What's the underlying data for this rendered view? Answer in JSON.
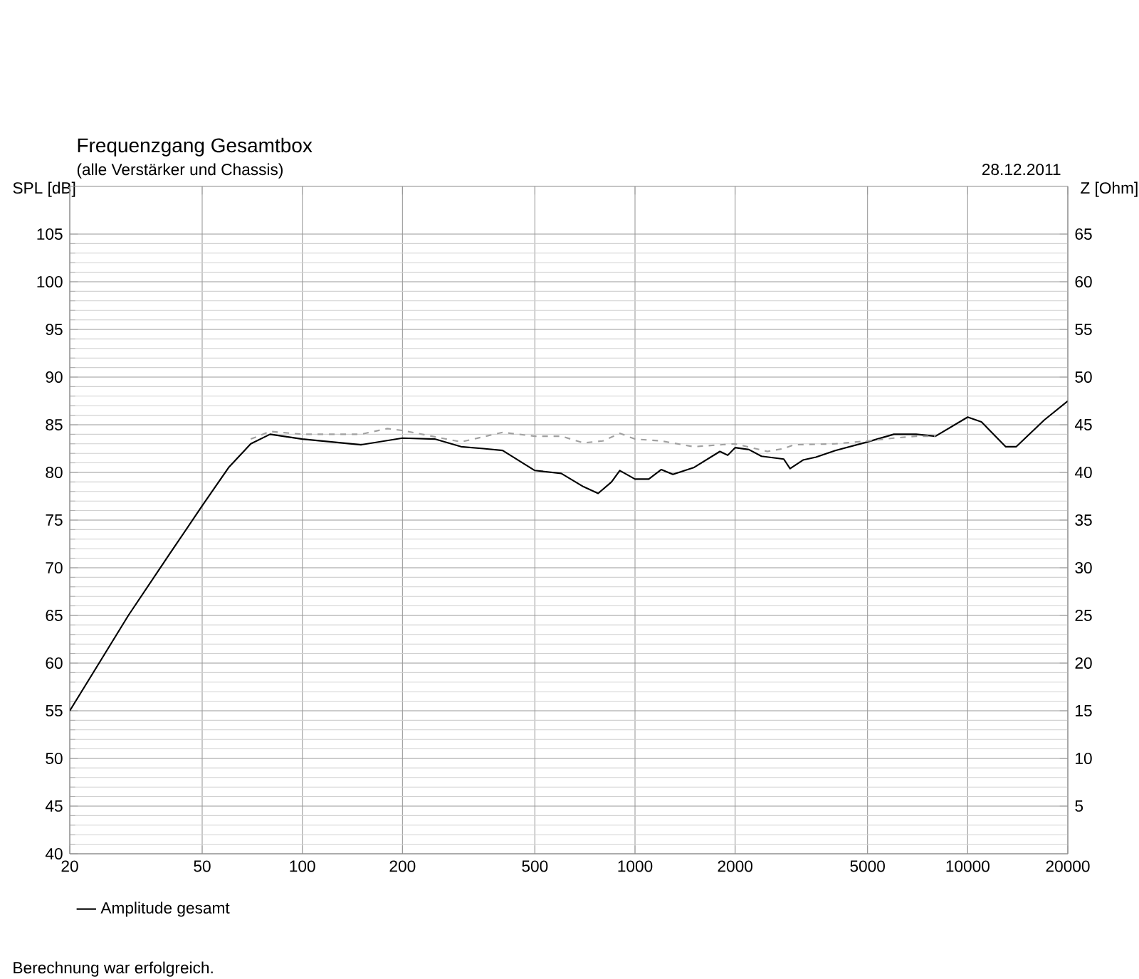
{
  "chart_data": {
    "type": "line",
    "title": "Frequenzgang Gesamtbox",
    "subtitle": "(alle Verstärker und Chassis)",
    "ylabel": "SPL [dB]",
    "y2label": "Z [Ohm]",
    "annotations": [
      "28.12.2011",
      "Berechnung war erfolgreich."
    ],
    "log": "x",
    "grid": true,
    "legend": "bottom left",
    "marker": "none",
    "xlim": [
      20,
      20000
    ],
    "xticks": [
      20,
      50,
      100,
      200,
      500,
      1000,
      2000,
      5000,
      10000,
      20000
    ],
    "ylim": [
      40,
      110
    ],
    "yticks": [
      40,
      45,
      50,
      55,
      60,
      65,
      70,
      75,
      80,
      85,
      90,
      95,
      100,
      105
    ],
    "y2lim": [
      0,
      70
    ],
    "y2ticks": [
      5,
      10,
      15,
      20,
      25,
      30,
      35,
      40,
      45,
      50,
      55,
      60,
      65
    ],
    "series": [
      {
        "name": "Amplitude gesamt",
        "color": "#000000",
        "line_style": "solid",
        "x": [
          20,
          25,
          30,
          40,
          50,
          60,
          70,
          80,
          100,
          150,
          200,
          250,
          300,
          350,
          400,
          500,
          600,
          700,
          775,
          850,
          900,
          1000,
          1100,
          1200,
          1300,
          1500,
          1800,
          1900,
          2000,
          2200,
          2400,
          2800,
          2925,
          3200,
          3500,
          4000,
          5000,
          6000,
          7000,
          8000,
          10000,
          11000,
          13000,
          14000,
          17000,
          20000
        ],
        "values": [
          55,
          60.5,
          65,
          71.5,
          76.5,
          80.5,
          83,
          84,
          83.5,
          82.9,
          83.6,
          83.5,
          82.7,
          82.5,
          82.3,
          80.2,
          79.9,
          78.5,
          77.8,
          79,
          80.2,
          79.3,
          79.3,
          80.3,
          79.8,
          80.5,
          82.2,
          81.8,
          82.6,
          82.4,
          81.7,
          81.4,
          80.4,
          81.3,
          81.6,
          82.3,
          83.2,
          84,
          84,
          83.8,
          85.8,
          85.3,
          82.7,
          82.7,
          85.5,
          87.5
        ]
      },
      {
        "color": "#a0a0a0",
        "line_style": "dashed",
        "x": [
          70,
          80,
          100,
          150,
          180,
          200,
          300,
          400,
          500,
          600,
          700,
          800,
          900,
          1000,
          1200,
          1500,
          2000,
          2500,
          2800,
          3000,
          4000,
          5000,
          6000,
          7000,
          8000
        ],
        "values": [
          83.5,
          84.3,
          84,
          84,
          84.6,
          84.4,
          83.2,
          84.2,
          83.8,
          83.8,
          83.1,
          83.3,
          84.1,
          83.5,
          83.3,
          82.7,
          83,
          82.2,
          82.5,
          82.9,
          83,
          83.3,
          83.6,
          83.8,
          83.8
        ]
      }
    ]
  }
}
